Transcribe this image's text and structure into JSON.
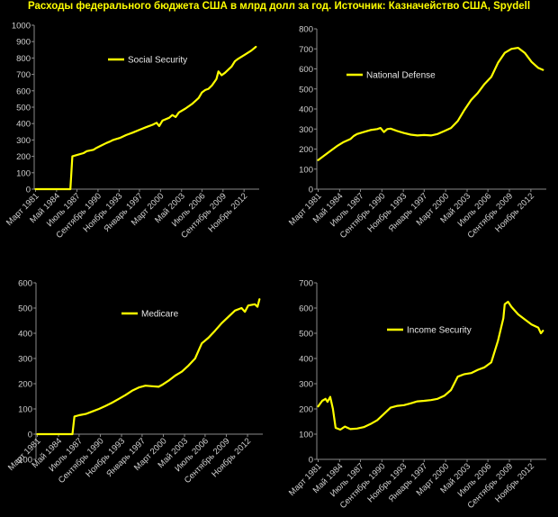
{
  "title": "Расходы федерального бюджета США в млрд долл за год. Источник: Казначейство США, Spydell",
  "colors": {
    "line": "#ffff00",
    "background": "#000000",
    "axis": "#8a8a8a",
    "text": "#d0d0d0"
  },
  "chart_data": [
    {
      "type": "line",
      "series": [
        {
          "name": "Social Security",
          "values": [
            [
              1981.2,
              0
            ],
            [
              1982.0,
              0
            ],
            [
              1983.0,
              0
            ],
            [
              1984.0,
              0
            ],
            [
              1985.0,
              0
            ],
            [
              1986.0,
              0
            ],
            [
              1986.5,
              0
            ],
            [
              1986.8,
              200
            ],
            [
              1987.5,
              208
            ],
            [
              1988.5,
              220
            ],
            [
              1989.0,
              232
            ],
            [
              1990.0,
              240
            ],
            [
              1990.5,
              252
            ],
            [
              1991.0,
              262
            ],
            [
              1992.0,
              282
            ],
            [
              1992.5,
              290
            ],
            [
              1993.0,
              300
            ],
            [
              1994.0,
              312
            ],
            [
              1995.0,
              330
            ],
            [
              1996.0,
              345
            ],
            [
              1997.0,
              362
            ],
            [
              1998.0,
              378
            ],
            [
              1999.0,
              393
            ],
            [
              1999.6,
              405
            ],
            [
              2000.0,
              385
            ],
            [
              2000.5,
              418
            ],
            [
              2001.5,
              435
            ],
            [
              2002.0,
              452
            ],
            [
              2002.5,
              440
            ],
            [
              2003.0,
              468
            ],
            [
              2004.0,
              492
            ],
            [
              2005.0,
              520
            ],
            [
              2006.0,
              556
            ],
            [
              2006.5,
              590
            ],
            [
              2007.0,
              605
            ],
            [
              2007.5,
              612
            ],
            [
              2008.0,
              632
            ],
            [
              2008.7,
              672
            ],
            [
              2009.0,
              718
            ],
            [
              2009.5,
              695
            ],
            [
              2010.0,
              710
            ],
            [
              2011.0,
              748
            ],
            [
              2011.5,
              780
            ],
            [
              2012.0,
              795
            ],
            [
              2013.0,
              820
            ],
            [
              2014.0,
              845
            ],
            [
              2014.7,
              868
            ]
          ]
        }
      ],
      "ylim": [
        0,
        1000
      ],
      "yticks": [
        0,
        100,
        200,
        300,
        400,
        500,
        600,
        700,
        800,
        900,
        1000
      ],
      "xlim": [
        1981.0,
        2015.2
      ],
      "xticks": [
        {
          "label": "Март 1981",
          "x": 1981.2
        },
        {
          "label": "Май 1984",
          "x": 1984.4
        },
        {
          "label": "Июль 1987",
          "x": 1987.5
        },
        {
          "label": "Сентябрь 1990",
          "x": 1990.7
        },
        {
          "label": "Ноябрь 1993",
          "x": 1993.9
        },
        {
          "label": "Январь 1997",
          "x": 1997.0
        },
        {
          "label": "Март 2000",
          "x": 2000.2
        },
        {
          "label": "Май 2003",
          "x": 2003.4
        },
        {
          "label": "Июль 2006",
          "x": 2006.5
        },
        {
          "label": "Сентябрь 2009",
          "x": 2009.7
        },
        {
          "label": "Ноябрь 2012",
          "x": 2012.9
        }
      ],
      "legend": "top-center"
    },
    {
      "type": "line",
      "series": [
        {
          "name": "National Defense",
          "values": [
            [
              1981.2,
              145
            ],
            [
              1982.0,
              165
            ],
            [
              1983.0,
              190
            ],
            [
              1984.0,
              215
            ],
            [
              1985.0,
              235
            ],
            [
              1986.0,
              250
            ],
            [
              1986.5,
              265
            ],
            [
              1987.0,
              275
            ],
            [
              1988.0,
              285
            ],
            [
              1989.0,
              295
            ],
            [
              1990.0,
              300
            ],
            [
              1990.5,
              305
            ],
            [
              1991.0,
              285
            ],
            [
              1991.5,
              300
            ],
            [
              1992.0,
              302
            ],
            [
              1993.0,
              290
            ],
            [
              1994.0,
              280
            ],
            [
              1995.0,
              272
            ],
            [
              1996.0,
              268
            ],
            [
              1997.0,
              270
            ],
            [
              1998.0,
              268
            ],
            [
              1999.0,
              275
            ],
            [
              2000.0,
              290
            ],
            [
              2001.0,
              305
            ],
            [
              2002.0,
              340
            ],
            [
              2003.0,
              395
            ],
            [
              2004.0,
              445
            ],
            [
              2005.0,
              480
            ],
            [
              2006.0,
              525
            ],
            [
              2007.0,
              560
            ],
            [
              2008.0,
              630
            ],
            [
              2009.0,
              680
            ],
            [
              2010.0,
              700
            ],
            [
              2011.0,
              705
            ],
            [
              2012.0,
              680
            ],
            [
              2013.0,
              635
            ],
            [
              2014.0,
              605
            ],
            [
              2014.7,
              595
            ]
          ]
        }
      ],
      "ylim": [
        0,
        800
      ],
      "yticks": [
        0,
        100,
        200,
        300,
        400,
        500,
        600,
        700,
        800
      ],
      "xlim": [
        1981.0,
        2015.2
      ],
      "xticks": [
        {
          "label": "Март 1981",
          "x": 1981.2
        },
        {
          "label": "Май 1984",
          "x": 1984.4
        },
        {
          "label": "Июль 1987",
          "x": 1987.5
        },
        {
          "label": "Сентябрь 1990",
          "x": 1990.7
        },
        {
          "label": "Ноябрь 1993",
          "x": 1993.9
        },
        {
          "label": "Январь 1997",
          "x": 1997.0
        },
        {
          "label": "Март 2000",
          "x": 2000.2
        },
        {
          "label": "Май 2003",
          "x": 2003.4
        },
        {
          "label": "Июль 2006",
          "x": 2006.5
        },
        {
          "label": "Сентябрь 2009",
          "x": 2009.7
        },
        {
          "label": "Ноябрь 2012",
          "x": 2012.9
        }
      ],
      "legend": "top-center"
    },
    {
      "type": "line",
      "series": [
        {
          "name": "Medicare",
          "values": [
            [
              1981.2,
              0
            ],
            [
              1982.0,
              0
            ],
            [
              1983.0,
              0
            ],
            [
              1984.0,
              0
            ],
            [
              1985.0,
              0
            ],
            [
              1986.0,
              0
            ],
            [
              1986.5,
              0
            ],
            [
              1986.8,
              70
            ],
            [
              1987.5,
              75
            ],
            [
              1988.5,
              80
            ],
            [
              1989.5,
              90
            ],
            [
              1990.5,
              100
            ],
            [
              1991.5,
              112
            ],
            [
              1992.5,
              125
            ],
            [
              1993.5,
              140
            ],
            [
              1994.5,
              155
            ],
            [
              1995.5,
              172
            ],
            [
              1996.5,
              185
            ],
            [
              1997.5,
              192
            ],
            [
              1998.5,
              190
            ],
            [
              1999.5,
              188
            ],
            [
              2000.0,
              195
            ],
            [
              2001.0,
              212
            ],
            [
              2002.0,
              232
            ],
            [
              2003.0,
              248
            ],
            [
              2004.0,
              272
            ],
            [
              2005.0,
              300
            ],
            [
              2005.5,
              330
            ],
            [
              2006.0,
              360
            ],
            [
              2007.0,
              382
            ],
            [
              2008.0,
              410
            ],
            [
              2009.0,
              440
            ],
            [
              2010.0,
              465
            ],
            [
              2011.0,
              490
            ],
            [
              2012.0,
              500
            ],
            [
              2012.5,
              485
            ],
            [
              2013.0,
              510
            ],
            [
              2014.0,
              515
            ],
            [
              2014.4,
              505
            ],
            [
              2014.7,
              535
            ]
          ]
        }
      ],
      "ylim": [
        -100,
        600
      ],
      "yticks": [
        -100,
        0,
        100,
        200,
        300,
        400,
        500,
        600
      ],
      "xlim": [
        1981.0,
        2015.2
      ],
      "xticks": [
        {
          "label": "Март 1981",
          "x": 1981.2
        },
        {
          "label": "Май 1984",
          "x": 1984.4
        },
        {
          "label": "Июль 1987",
          "x": 1987.5
        },
        {
          "label": "Сентябрь 1990",
          "x": 1990.7
        },
        {
          "label": "Ноябрь 1993",
          "x": 1993.9
        },
        {
          "label": "Январь 1997",
          "x": 1997.0
        },
        {
          "label": "Март 2000",
          "x": 2000.2
        },
        {
          "label": "Май 2003",
          "x": 2003.4
        },
        {
          "label": "Июль 2006",
          "x": 2006.5
        },
        {
          "label": "Сентябрь 2009",
          "x": 2009.7
        },
        {
          "label": "Ноябрь 2012",
          "x": 2012.9
        }
      ],
      "legend": "top-center"
    },
    {
      "type": "line",
      "series": [
        {
          "name": "Income Security",
          "values": [
            [
              1981.2,
              210
            ],
            [
              1981.8,
              232
            ],
            [
              1982.3,
              240
            ],
            [
              1982.6,
              228
            ],
            [
              1983.0,
              248
            ],
            [
              1983.4,
              200
            ],
            [
              1983.8,
              125
            ],
            [
              1984.5,
              118
            ],
            [
              1985.2,
              130
            ],
            [
              1986.0,
              120
            ],
            [
              1987.0,
              122
            ],
            [
              1988.0,
              128
            ],
            [
              1989.0,
              140
            ],
            [
              1990.0,
              155
            ],
            [
              1991.0,
              180
            ],
            [
              1992.0,
              205
            ],
            [
              1993.0,
              212
            ],
            [
              1994.0,
              215
            ],
            [
              1995.0,
              222
            ],
            [
              1996.0,
              230
            ],
            [
              1997.0,
              232
            ],
            [
              1998.0,
              235
            ],
            [
              1999.0,
              240
            ],
            [
              2000.0,
              252
            ],
            [
              2001.0,
              275
            ],
            [
              2002.0,
              328
            ],
            [
              2003.0,
              338
            ],
            [
              2004.0,
              342
            ],
            [
              2005.0,
              355
            ],
            [
              2006.0,
              365
            ],
            [
              2007.0,
              385
            ],
            [
              2008.0,
              470
            ],
            [
              2008.8,
              560
            ],
            [
              2009.0,
              615
            ],
            [
              2009.5,
              625
            ],
            [
              2010.0,
              605
            ],
            [
              2011.0,
              575
            ],
            [
              2012.0,
              555
            ],
            [
              2013.0,
              535
            ],
            [
              2014.0,
              522
            ],
            [
              2014.4,
              500
            ],
            [
              2014.7,
              510
            ]
          ]
        }
      ],
      "ylim": [
        0,
        700
      ],
      "yticks": [
        0,
        100,
        200,
        300,
        400,
        500,
        600,
        700
      ],
      "xlim": [
        1981.0,
        2015.2
      ],
      "xticks": [
        {
          "label": "Март 1981",
          "x": 1981.2
        },
        {
          "label": "Май 1984",
          "x": 1984.4
        },
        {
          "label": "Июль 1987",
          "x": 1987.5
        },
        {
          "label": "Сентябрь 1990",
          "x": 1990.7
        },
        {
          "label": "Ноябрь 1993",
          "x": 1993.9
        },
        {
          "label": "Январь 1997",
          "x": 1997.0
        },
        {
          "label": "Март 2000",
          "x": 2000.2
        },
        {
          "label": "Май 2003",
          "x": 2003.4
        },
        {
          "label": "Июль 2006",
          "x": 2006.5
        },
        {
          "label": "Сентябрь 2009",
          "x": 2009.7
        },
        {
          "label": "Ноябрь 2012",
          "x": 2012.9
        }
      ],
      "legend": "center"
    }
  ]
}
